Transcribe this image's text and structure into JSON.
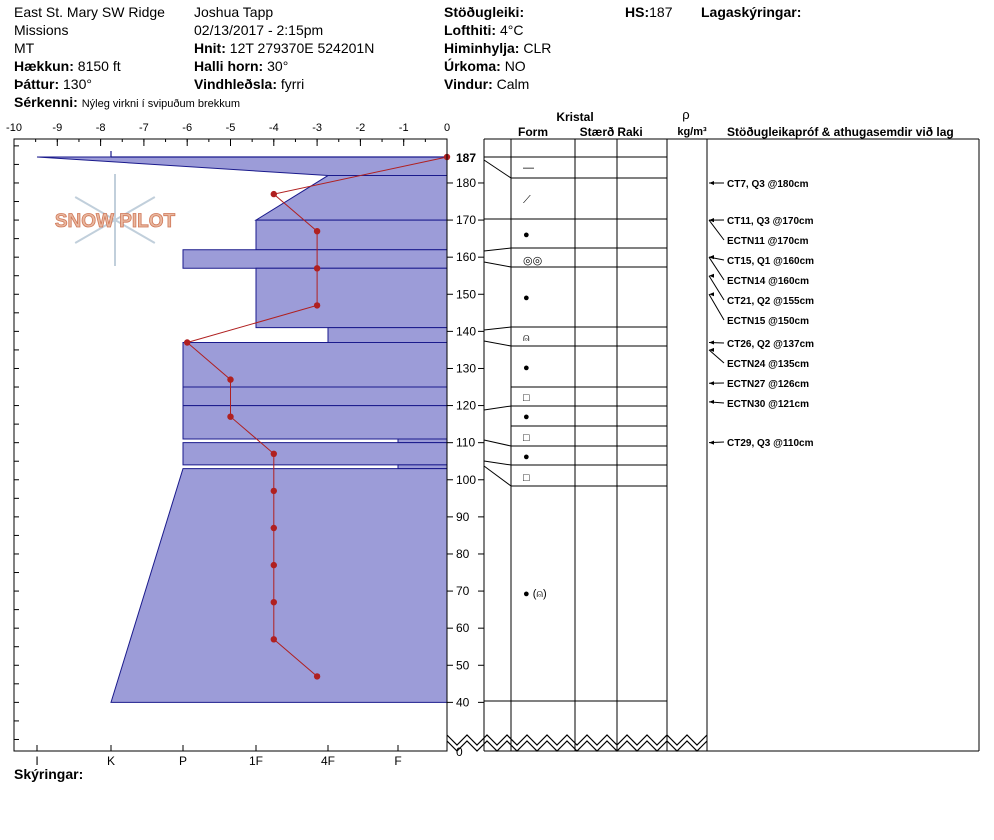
{
  "header": {
    "location_line1": "East St. Mary SW Ridge",
    "location_line2": "Missions",
    "location_line3": "MT",
    "elevation_label": "Hækkun:",
    "elevation_value": "8150 ft",
    "aspect_label": "Þáttur:",
    "aspect_value": "130°",
    "features_label": "Sérkenni:",
    "features_value": "Nýleg virkni í svipuðum brekkum",
    "observer": "Joshua Tapp",
    "datetime": "02/13/2017 - 2:15pm",
    "coords_label": "Hnit:",
    "coords_value": "12T 279370E 524201N",
    "slope_label": "Halli horn:",
    "slope_value": "30°",
    "wind_loading_label": "Vindhleðsla:",
    "wind_loading_value": "fyrri",
    "stability_label": "Stöðugleiki:",
    "air_temp_label": "Lofthiti:",
    "air_temp_value": "4°C",
    "sky_label": "Himinhylja:",
    "sky_value": "CLR",
    "precip_label": "Úrkoma:",
    "precip_value": "NO",
    "wind_label": "Vindur:",
    "wind_value": "Calm",
    "hs_label": "HS:",
    "hs_value": "187",
    "layer_notes_label": "Lagaskýringar:"
  },
  "footer": {
    "notes_label": "Skýringar:"
  },
  "logo_text": "SNOW PILOT",
  "columns": {
    "crystal": "Kristal",
    "form": "Form",
    "size": "Stærð",
    "moisture": "Raki",
    "rho": "ρ",
    "density_unit": "kg/m³",
    "tests": "Stöðugleikapróf & athugasemdir við lag"
  },
  "colors": {
    "hardness_fill": "#9c9cd8",
    "hardness_edge": "#1a1a8c",
    "temp_line": "#b02020"
  },
  "chart_data": {
    "type": "line",
    "temp_axis": {
      "ticks": [
        -10,
        -9,
        -8,
        -7,
        -6,
        -5,
        -4,
        -3,
        -2,
        -1,
        0
      ],
      "range": [
        -10,
        0
      ]
    },
    "depth_axis": {
      "range": [
        30,
        190
      ],
      "ticks": [
        40,
        50,
        60,
        70,
        80,
        90,
        100,
        110,
        120,
        130,
        140,
        150,
        160,
        170,
        180
      ],
      "top_label": "187",
      "zero_label": "0"
    },
    "hardness_axis": {
      "labels": [
        "I",
        "K",
        "P",
        "1F",
        "4F",
        "F"
      ]
    },
    "temperature_profile": [
      {
        "depth": 187,
        "temp": 0
      },
      {
        "depth": 177,
        "temp": -4
      },
      {
        "depth": 167,
        "temp": -3
      },
      {
        "depth": 157,
        "temp": -3
      },
      {
        "depth": 147,
        "temp": -3
      },
      {
        "depth": 137,
        "temp": -6
      },
      {
        "depth": 127,
        "temp": -5
      },
      {
        "depth": 117,
        "temp": -5
      },
      {
        "depth": 107,
        "temp": -4
      },
      {
        "depth": 97,
        "temp": -4
      },
      {
        "depth": 87,
        "temp": -4
      },
      {
        "depth": 77,
        "temp": -4
      },
      {
        "depth": 67,
        "temp": -4
      },
      {
        "depth": 57,
        "temp": -4
      },
      {
        "depth": 47,
        "temp": -3
      }
    ],
    "layers": [
      {
        "top": 187,
        "bottom": 182,
        "hardness_top": "I",
        "hardness_bottom": "4F",
        "form": "—"
      },
      {
        "top": 182,
        "bottom": 170,
        "hardness_top": "4F",
        "hardness_bottom": "1F",
        "form": "⟋"
      },
      {
        "top": 170,
        "bottom": 162,
        "hardness_top": "1F",
        "hardness_bottom": "1F",
        "form": "●"
      },
      {
        "top": 162,
        "bottom": 157,
        "hardness_top": "P",
        "hardness_bottom": "P",
        "form": "◎◎"
      },
      {
        "top": 157,
        "bottom": 141,
        "hardness_top": "1F",
        "hardness_bottom": "1F",
        "form": "●"
      },
      {
        "top": 141,
        "bottom": 137,
        "hardness_top": "4F",
        "hardness_bottom": "4F",
        "form": "⍝"
      },
      {
        "top": 137,
        "bottom": 125,
        "hardness_top": "P",
        "hardness_bottom": "P",
        "form": "●"
      },
      {
        "top": 125,
        "bottom": 120,
        "hardness_top": "P",
        "hardness_bottom": "P",
        "form": "□"
      },
      {
        "top": 120,
        "bottom": 111,
        "hardness_top": "P",
        "hardness_bottom": "P",
        "form": "●"
      },
      {
        "top": 111,
        "bottom": 110,
        "hardness_top": "F",
        "hardness_bottom": "F",
        "form": "□"
      },
      {
        "top": 110,
        "bottom": 104,
        "hardness_top": "P",
        "hardness_bottom": "P",
        "form": "●"
      },
      {
        "top": 104,
        "bottom": 103,
        "hardness_top": "F",
        "hardness_bottom": "F",
        "form": "□"
      },
      {
        "top": 103,
        "bottom": 40,
        "hardness_top": "P",
        "hardness_bottom": "K",
        "form": "● (⍝)"
      }
    ],
    "tests": [
      {
        "label": "CT7, Q3 @180cm",
        "depth": 180
      },
      {
        "label": "CT11, Q3 @170cm",
        "depth": 170
      },
      {
        "label": "ECTN11 @170cm",
        "depth": 170
      },
      {
        "label": "CT15, Q1 @160cm",
        "depth": 160
      },
      {
        "label": "ECTN14 @160cm",
        "depth": 160
      },
      {
        "label": "CT21, Q2 @155cm",
        "depth": 155
      },
      {
        "label": "ECTN15 @150cm",
        "depth": 150
      },
      {
        "label": "CT26, Q2 @137cm",
        "depth": 137
      },
      {
        "label": "ECTN24 @135cm",
        "depth": 135
      },
      {
        "label": "ECTN27 @126cm",
        "depth": 126
      },
      {
        "label": "ECTN30 @121cm",
        "depth": 121
      },
      {
        "label": "CT29, Q3 @110cm",
        "depth": 110
      }
    ]
  }
}
